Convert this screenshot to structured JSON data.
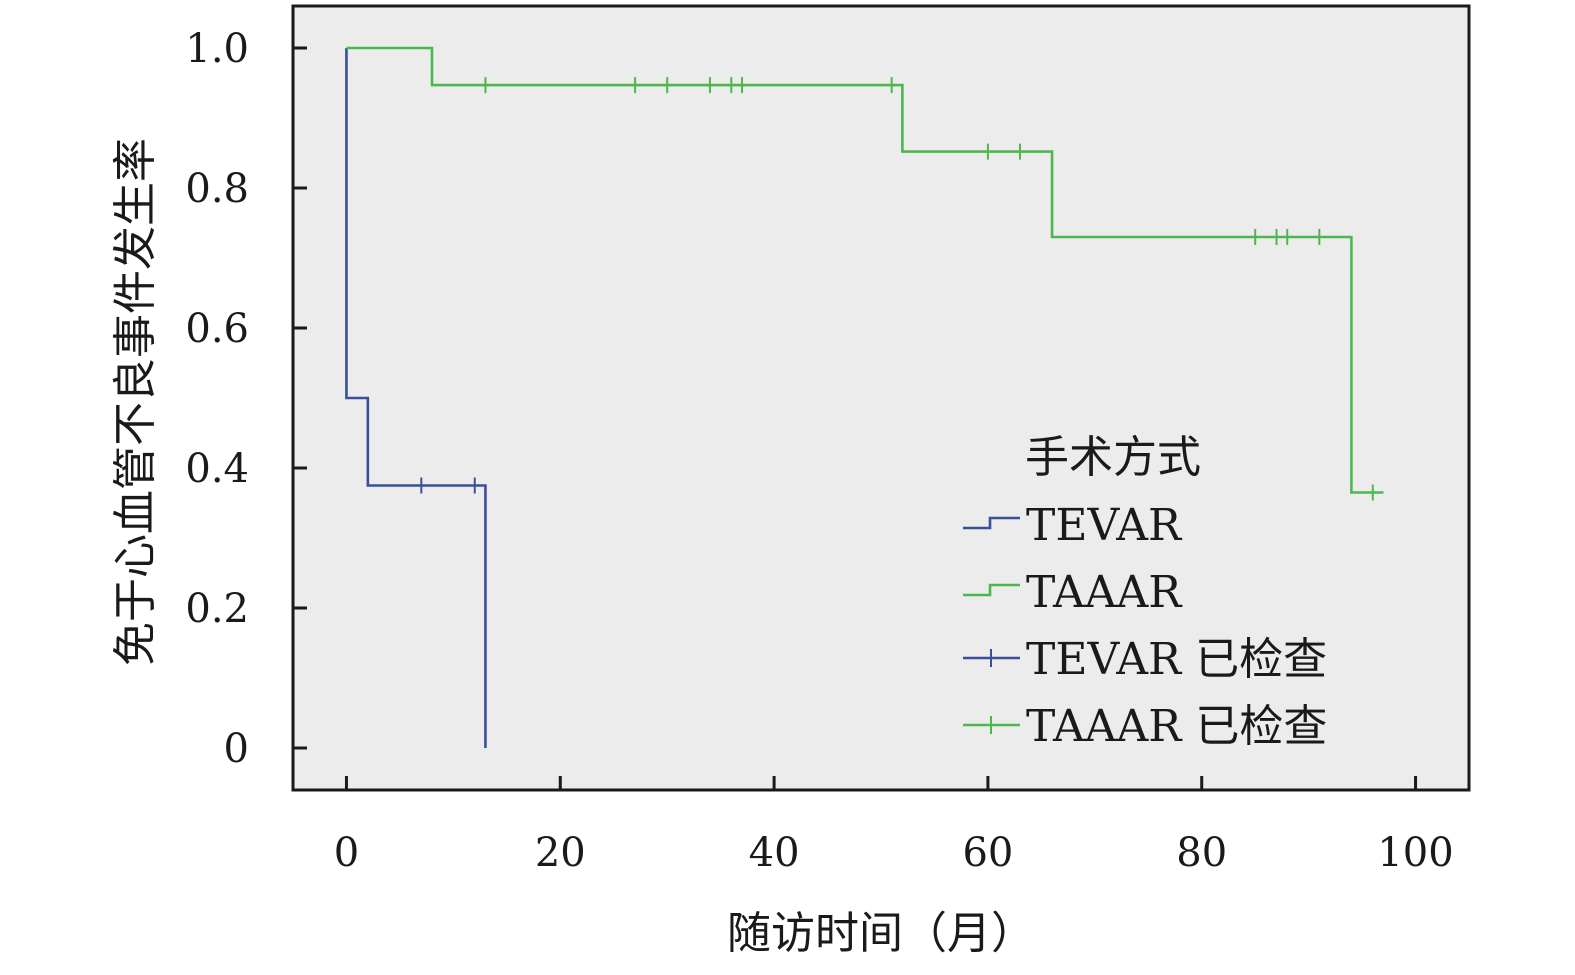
{
  "chart_data": {
    "type": "line",
    "subtype": "kaplan-meier step",
    "title": "",
    "xlabel": "随访时间（月）",
    "ylabel": "免于心血管不良事件发生率",
    "xlim": [
      -5,
      105
    ],
    "ylim": [
      -0.06,
      1.06
    ],
    "x_ticks": [
      0,
      20,
      40,
      60,
      80,
      100
    ],
    "x_tick_labels": [
      "0",
      "20",
      "40",
      "60",
      "80",
      "100"
    ],
    "y_ticks": [
      0,
      0.2,
      0.4,
      0.6,
      0.8,
      1.0
    ],
    "y_tick_labels": [
      "0",
      "0.2",
      "0.4",
      "0.6",
      "0.8",
      "1.0"
    ],
    "grid": false,
    "background": "#ececec",
    "legend": {
      "title": "手术方式",
      "placement": "lower-right",
      "entries": [
        {
          "label": "TEVAR",
          "kind": "step",
          "color": "#3a4f9a"
        },
        {
          "label": "TAAAR",
          "kind": "step",
          "color": "#4cb84c"
        },
        {
          "label": "TEVAR 已检查",
          "kind": "censor",
          "color": "#3a4f9a"
        },
        {
          "label": "TAAAR 已检查",
          "kind": "censor",
          "color": "#4cb84c"
        }
      ]
    },
    "series": [
      {
        "name": "TEVAR",
        "color": "#3a4f9a",
        "steps": [
          {
            "x": 0,
            "y": 1.0
          },
          {
            "x": 0,
            "y": 0.5
          },
          {
            "x": 2,
            "y": 0.375
          },
          {
            "x": 13,
            "y": 0.0
          }
        ],
        "censored": [
          {
            "x": 7,
            "y": 0.375
          },
          {
            "x": 12,
            "y": 0.375
          }
        ]
      },
      {
        "name": "TAAAR",
        "color": "#4cb84c",
        "steps": [
          {
            "x": 0,
            "y": 1.0
          },
          {
            "x": 8,
            "y": 0.947
          },
          {
            "x": 52,
            "y": 0.852
          },
          {
            "x": 66,
            "y": 0.73
          },
          {
            "x": 94,
            "y": 0.365
          },
          {
            "x": 97,
            "y": 0.365
          }
        ],
        "censored": [
          {
            "x": 13,
            "y": 0.947
          },
          {
            "x": 27,
            "y": 0.947
          },
          {
            "x": 30,
            "y": 0.947
          },
          {
            "x": 34,
            "y": 0.947
          },
          {
            "x": 36,
            "y": 0.947
          },
          {
            "x": 37,
            "y": 0.947
          },
          {
            "x": 51,
            "y": 0.947
          },
          {
            "x": 60,
            "y": 0.852
          },
          {
            "x": 63,
            "y": 0.852
          },
          {
            "x": 85,
            "y": 0.73
          },
          {
            "x": 87,
            "y": 0.73
          },
          {
            "x": 88,
            "y": 0.73
          },
          {
            "x": 91,
            "y": 0.73
          },
          {
            "x": 96,
            "y": 0.365
          }
        ]
      }
    ]
  }
}
